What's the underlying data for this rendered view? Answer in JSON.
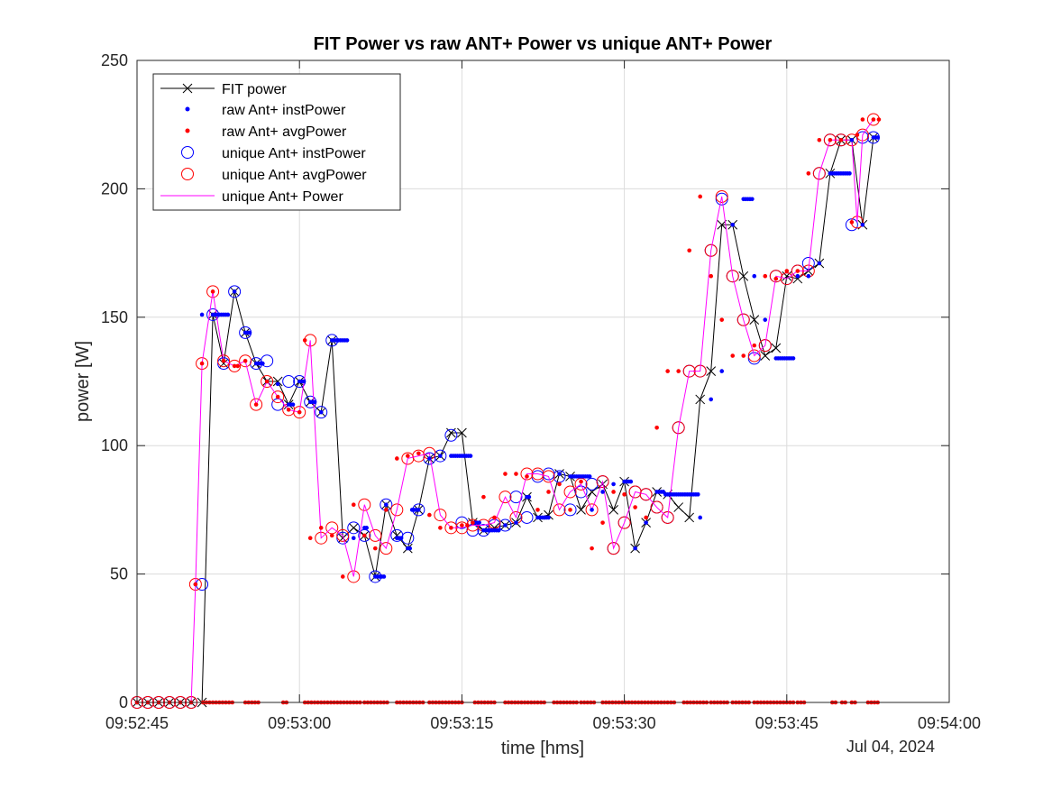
{
  "chart_data": {
    "type": "line",
    "title": "FIT Power vs raw ANT+ Power vs unique ANT+ Power",
    "xlabel": "time [hms]",
    "ylabel": "power [W]",
    "date_label": "Jul 04, 2024",
    "x_unit": "seconds after 09:52:45",
    "xlim": [
      0,
      75
    ],
    "ylim": [
      0,
      250
    ],
    "x_ticks": [
      {
        "value": 0,
        "label": "09:52:45"
      },
      {
        "value": 15,
        "label": "09:53:00"
      },
      {
        "value": 30,
        "label": "09:53:15"
      },
      {
        "value": 45,
        "label": "09:53:30"
      },
      {
        "value": 60,
        "label": "09:53:45"
      },
      {
        "value": 75,
        "label": "09:54:00"
      }
    ],
    "y_ticks": [
      {
        "value": 0,
        "label": "0"
      },
      {
        "value": 50,
        "label": "50"
      },
      {
        "value": 100,
        "label": "100"
      },
      {
        "value": 150,
        "label": "150"
      },
      {
        "value": 200,
        "label": "200"
      },
      {
        "value": 250,
        "label": "250"
      }
    ],
    "grid": true,
    "legend_position": "top-left",
    "series": [
      {
        "name": "FIT power",
        "style": "line-x",
        "color": "#000000",
        "x": [
          0,
          1,
          2,
          3,
          4,
          5,
          6,
          7,
          8,
          9,
          10,
          11,
          12,
          13,
          14,
          15,
          16,
          17,
          18,
          19,
          20,
          21,
          22,
          23,
          24,
          25,
          26,
          27,
          28,
          29,
          30,
          31,
          32,
          33,
          34,
          35,
          36,
          37,
          38,
          39,
          40,
          41,
          42,
          43,
          44,
          45,
          46,
          47,
          48,
          49,
          50,
          51,
          52,
          53,
          54,
          55,
          56,
          57,
          58,
          59,
          60,
          61,
          62,
          63,
          64,
          65,
          66,
          67,
          68
        ],
        "y": [
          0,
          0,
          0,
          0,
          0,
          0,
          0,
          151,
          132,
          160,
          144,
          132,
          125,
          125,
          116,
          125,
          117,
          113,
          141,
          64,
          68,
          65,
          49,
          77,
          65,
          60,
          75,
          95,
          96,
          105,
          105,
          70,
          67,
          68,
          69,
          70,
          80,
          72,
          73,
          89,
          88,
          75,
          82,
          85,
          75,
          86,
          60,
          70,
          82,
          81,
          76,
          72,
          118,
          129,
          186,
          186,
          166,
          149,
          135,
          138,
          166,
          165,
          168,
          171,
          206,
          219,
          219,
          186,
          220
        ]
      },
      {
        "name": "raw Ant+ instPower",
        "style": "dot",
        "color": "#0000ff",
        "x": [
          0,
          1,
          2,
          3,
          4,
          5,
          5.4,
          6,
          7,
          7.2,
          7.4,
          7.6,
          7.8,
          8,
          8.2,
          8.4,
          9,
          10,
          10.2,
          10.4,
          11,
          11.2,
          11.4,
          11.6,
          12,
          13,
          14,
          14.2,
          14.4,
          15,
          15.2,
          15.4,
          16,
          16.2,
          16.4,
          17,
          18,
          18.2,
          18.4,
          18.6,
          18.8,
          19,
          19.2,
          19.4,
          20,
          21,
          21.2,
          22,
          22.2,
          22.4,
          22.6,
          22.8,
          23,
          24,
          24.2,
          24.4,
          25,
          25.2,
          25.4,
          25.6,
          25.8,
          26,
          27,
          28,
          29,
          29.2,
          29.4,
          29.6,
          29.8,
          30,
          30.2,
          30.4,
          30.6,
          30.8,
          31,
          31.2,
          31.4,
          31.6,
          32,
          32.2,
          32.4,
          32.6,
          32.8,
          33,
          33.2,
          33.4,
          34,
          35,
          36,
          36.2,
          37,
          37.2,
          37.4,
          37.6,
          37.8,
          38,
          39,
          40,
          40.2,
          40.4,
          40.6,
          40.8,
          41,
          41.2,
          41.4,
          41.6,
          41.8,
          42,
          43,
          44,
          45,
          45.2,
          45.4,
          45.6,
          46,
          47,
          48,
          48.2,
          48.4,
          48.6,
          48.8,
          49,
          49.2,
          49.4,
          49.6,
          49.8,
          50,
          50.2,
          50.4,
          50.6,
          50.8,
          51,
          51.2,
          51.4,
          51.6,
          51.8,
          52,
          53,
          54,
          55,
          56,
          56.2,
          56.4,
          56.6,
          56.8,
          57,
          58,
          59,
          59.2,
          59.4,
          59.6,
          59.8,
          60,
          60.2,
          60.4,
          60.6,
          61,
          62,
          63,
          64,
          64.2,
          64.4,
          64.6,
          64.8,
          65,
          65.2,
          65.4,
          65.6,
          65.8,
          66,
          67,
          68,
          68.2,
          68.4
        ],
        "y": [
          0,
          0,
          0,
          0,
          0,
          0,
          46,
          151,
          151,
          151,
          151,
          151,
          151,
          151,
          151,
          151,
          160,
          144,
          144,
          144,
          132,
          132,
          132,
          132,
          125,
          124,
          116,
          116,
          116,
          125,
          125,
          125,
          117,
          117,
          117,
          113,
          141,
          141,
          141,
          141,
          141,
          141,
          141,
          141,
          64,
          68,
          68,
          49,
          49,
          49,
          49,
          49,
          77,
          64,
          64,
          64,
          60,
          60,
          75,
          75,
          75,
          75,
          95,
          96,
          96,
          96,
          96,
          96,
          96,
          96,
          96,
          96,
          96,
          96,
          70,
          70,
          70,
          70,
          67,
          67,
          67,
          67,
          67,
          67,
          67,
          67,
          69,
          70,
          80,
          80,
          72,
          72,
          72,
          72,
          72,
          72,
          89,
          88,
          88,
          88,
          88,
          88,
          88,
          88,
          88,
          88,
          88,
          75,
          82,
          85,
          86,
          86,
          86,
          86,
          60,
          70,
          82,
          82,
          82,
          82,
          81,
          81,
          81,
          81,
          81,
          81,
          81,
          81,
          81,
          81,
          81,
          81,
          81,
          81,
          81,
          81,
          72,
          118,
          129,
          186,
          196,
          196,
          196,
          196,
          196,
          166,
          149,
          134,
          134,
          134,
          134,
          134,
          134,
          134,
          134,
          134,
          166,
          166,
          171,
          206,
          206,
          206,
          206,
          206,
          206,
          206,
          206,
          206,
          206,
          219,
          186,
          220,
          220,
          220
        ]
      },
      {
        "name": "raw Ant+ avgPower",
        "style": "dot",
        "color": "#ff0000",
        "x": [
          0,
          1,
          2,
          3,
          4,
          5,
          5.4,
          6,
          7,
          8,
          9,
          9.3,
          10,
          11,
          12,
          13,
          14,
          15,
          15.5,
          16,
          17,
          18,
          19,
          20,
          21,
          22,
          23,
          24,
          25,
          26,
          27,
          28,
          29,
          30,
          30.5,
          31,
          32,
          33,
          34,
          35,
          36,
          37,
          38,
          39,
          40,
          41,
          42,
          43,
          44,
          45,
          46,
          47,
          48,
          49,
          50,
          51,
          52,
          53,
          54,
          55,
          56,
          57,
          58,
          59,
          60,
          61,
          62,
          63,
          64,
          65,
          66,
          66.5,
          67,
          68,
          68.5
        ],
        "y": [
          0,
          0,
          0,
          0,
          0,
          0,
          46,
          132,
          160,
          133,
          131,
          131,
          133,
          116,
          125,
          119,
          114,
          113,
          141,
          64,
          68,
          65,
          49,
          77,
          65,
          60,
          75,
          95,
          96,
          97,
          73,
          68,
          68,
          69,
          69,
          70,
          80,
          72,
          89,
          89,
          88,
          75,
          82,
          85,
          75,
          86,
          60,
          70,
          82,
          81,
          76,
          72,
          107,
          129,
          129,
          176,
          197,
          166,
          149,
          135,
          135,
          139,
          166,
          165,
          168,
          168,
          206,
          219,
          219,
          219,
          187,
          221,
          227,
          227,
          227
        ],
        "zero_x": [
          6.1,
          6.4,
          6.7,
          7,
          7.3,
          7.6,
          7.9,
          8.2,
          8.5,
          8.8,
          10,
          10.3,
          10.6,
          10.9,
          11.2,
          13.5,
          13.8,
          15.5,
          15.8,
          16.1,
          16.4,
          16.7,
          17,
          17.3,
          17.6,
          17.9,
          18.2,
          18.5,
          18.8,
          19.1,
          19.4,
          19.7,
          20,
          20.3,
          20.6,
          21,
          21.3,
          21.6,
          21.9,
          22.2,
          22.5,
          22.8,
          23.1,
          24,
          24.3,
          24.6,
          24.9,
          25.2,
          25.5,
          25.8,
          26.1,
          26.4,
          27,
          27.3,
          27.6,
          27.9,
          28.2,
          28.5,
          28.8,
          29.1,
          29.4,
          29.7,
          30,
          31.2,
          31.5,
          31.8,
          32.1,
          32.4,
          32.7,
          33,
          34,
          34.3,
          34.6,
          34.9,
          35.2,
          35.5,
          35.8,
          36.1,
          36.4,
          36.7,
          37,
          37.3,
          37.6,
          38.5,
          38.8,
          39.1,
          39.4,
          39.7,
          40,
          40.3,
          40.6,
          41,
          41.3,
          41.6,
          41.9,
          42.2,
          43,
          43.3,
          43.6,
          43.9,
          44.2,
          44.5,
          44.8,
          45.1,
          45.4,
          45.7,
          46,
          46.3,
          46.6,
          46.9,
          47.2,
          47.5,
          47.8,
          48.1,
          48.4,
          48.7,
          49,
          49.3,
          49.6,
          50.5,
          50.8,
          51.1,
          51.4,
          51.7,
          52,
          52.3,
          52.6,
          53,
          53.3,
          53.6,
          53.9,
          54.2,
          54.5,
          55,
          55.3,
          55.6,
          55.9,
          56.2,
          56.5,
          57,
          57.3,
          57.6,
          57.9,
          58.2,
          58.5,
          58.8,
          59.1,
          59.4,
          59.7,
          60,
          60.3,
          60.6,
          61,
          61.3,
          61.6,
          64.2,
          64.5,
          65.1,
          65.4,
          66,
          66.3,
          67.5,
          67.8,
          68.1,
          68.4
        ]
      },
      {
        "name": "unique Ant+ instPower",
        "style": "circle",
        "color": "#0000ff",
        "x": [
          0,
          1,
          2,
          3,
          4,
          5,
          6,
          7,
          8,
          9,
          10,
          11,
          12,
          13,
          14,
          15,
          16,
          17,
          18,
          19,
          20,
          21,
          22,
          23,
          24,
          25,
          26,
          27,
          28,
          29,
          30,
          31,
          32,
          33,
          34,
          35,
          36,
          37,
          38,
          39,
          40,
          41,
          42,
          43,
          44,
          45,
          46,
          47,
          48,
          49,
          50,
          51,
          52,
          53,
          54,
          55,
          56,
          57,
          58,
          59,
          60,
          61,
          62,
          63,
          64,
          65,
          66,
          67,
          68
        ],
        "y": [
          0,
          0,
          0,
          0,
          0,
          0,
          46,
          151,
          132,
          160,
          144,
          132,
          133,
          116,
          125,
          125,
          117,
          113,
          141,
          64,
          68,
          65,
          49,
          77,
          65,
          64,
          75,
          95,
          96,
          104,
          70,
          67,
          67,
          69,
          69,
          80,
          72,
          88,
          89,
          88,
          75,
          82,
          85,
          86,
          60,
          70,
          82,
          81,
          76,
          72,
          107,
          129,
          129,
          176,
          196,
          166,
          149,
          134,
          139,
          166,
          165,
          168,
          171,
          206,
          219,
          219,
          186,
          220,
          220
        ]
      },
      {
        "name": "unique Ant+ avgPower",
        "style": "circle",
        "color": "#ff0000",
        "x": [
          0,
          1,
          2,
          3,
          4,
          5,
          5.4,
          6,
          7,
          8,
          9,
          10,
          11,
          12,
          13,
          14,
          15,
          16,
          17,
          18,
          19,
          20,
          21,
          22,
          23,
          24,
          25,
          26,
          27,
          28,
          29,
          30,
          31,
          32,
          33,
          34,
          35,
          36,
          37,
          38,
          39,
          40,
          41,
          42,
          43,
          44,
          45,
          46,
          47,
          48,
          49,
          50,
          51,
          52,
          53,
          54,
          55,
          56,
          57,
          58,
          59,
          60,
          61,
          62,
          63,
          64,
          65,
          66,
          66.5,
          67,
          68
        ],
        "y": [
          0,
          0,
          0,
          0,
          0,
          0,
          46,
          132,
          160,
          133,
          131,
          133,
          116,
          125,
          119,
          114,
          113,
          141,
          64,
          68,
          65,
          49,
          77,
          65,
          60,
          75,
          95,
          96,
          97,
          73,
          68,
          68,
          69,
          69,
          70,
          80,
          72,
          89,
          89,
          88,
          75,
          82,
          85,
          75,
          86,
          60,
          70,
          82,
          81,
          76,
          72,
          107,
          129,
          129,
          176,
          197,
          166,
          149,
          135,
          139,
          166,
          165,
          168,
          168,
          206,
          219,
          219,
          219,
          187,
          221,
          227
        ]
      },
      {
        "name": "unique Ant+ Power",
        "style": "line",
        "color": "#ff00ff",
        "x": [
          0,
          1,
          2,
          3,
          4,
          5,
          5.4,
          6,
          7,
          8,
          9,
          10,
          11,
          12,
          13,
          14,
          15,
          16,
          17,
          18,
          19,
          20,
          21,
          22,
          23,
          24,
          25,
          26,
          27,
          28,
          29,
          30,
          31,
          32,
          33,
          34,
          35,
          36,
          37,
          38,
          39,
          40,
          41,
          42,
          43,
          44,
          45,
          46,
          47,
          48,
          49,
          50,
          51,
          52,
          53,
          54,
          55,
          56,
          57,
          58,
          59,
          60,
          61,
          62,
          63,
          64,
          65,
          66,
          66.5,
          67,
          68
        ],
        "y": [
          0,
          0,
          0,
          0,
          0,
          0,
          46,
          132,
          160,
          133,
          131,
          133,
          116,
          125,
          119,
          114,
          113,
          141,
          64,
          68,
          65,
          49,
          77,
          65,
          60,
          75,
          95,
          96,
          97,
          73,
          68,
          68,
          69,
          69,
          70,
          80,
          72,
          89,
          89,
          88,
          75,
          82,
          85,
          75,
          86,
          60,
          70,
          82,
          81,
          76,
          72,
          107,
          129,
          129,
          176,
          197,
          166,
          149,
          135,
          139,
          166,
          165,
          168,
          168,
          206,
          219,
          219,
          219,
          187,
          221,
          227
        ]
      }
    ]
  }
}
